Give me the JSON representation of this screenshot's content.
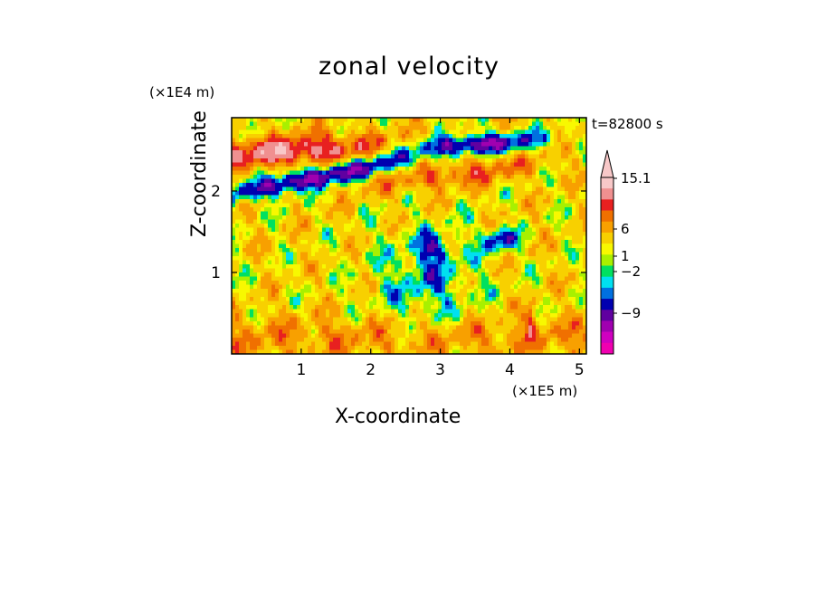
{
  "chart_data": {
    "type": "heatmap",
    "title": "zonal velocity",
    "xlabel": "X-coordinate",
    "ylabel": "Z-coordinate",
    "x_scale_note": "(×1E5 m)",
    "z_scale_note": "(×1E4 m)",
    "time_label": "t=82800 s",
    "xlim": [
      0,
      5.1
    ],
    "ylim": [
      0,
      2.9
    ],
    "x_ticks": [
      1,
      2,
      3,
      4,
      5
    ],
    "y_ticks": [
      1,
      2
    ],
    "colorbar": {
      "labels": [
        "15.1",
        "6",
        "1",
        "−2",
        "−9"
      ],
      "label_values": [
        15.1,
        6,
        1,
        -2,
        -9
      ],
      "colors": [
        "#f8c8c8",
        "#f09090",
        "#e82020",
        "#f07000",
        "#f8a000",
        "#f8d000",
        "#f8f800",
        "#a8f000",
        "#00e060",
        "#00e0f0",
        "#0070e0",
        "#0000b0",
        "#6000a0",
        "#a000b0",
        "#d000c0",
        "#f000b0"
      ]
    },
    "description_bands": [
      {
        "name": "negative jet upper-right",
        "z_center": 2.5
      },
      {
        "name": "negative jet left",
        "z_center": 1.95
      },
      {
        "name": "positive band",
        "z_center": 2.55
      }
    ]
  }
}
